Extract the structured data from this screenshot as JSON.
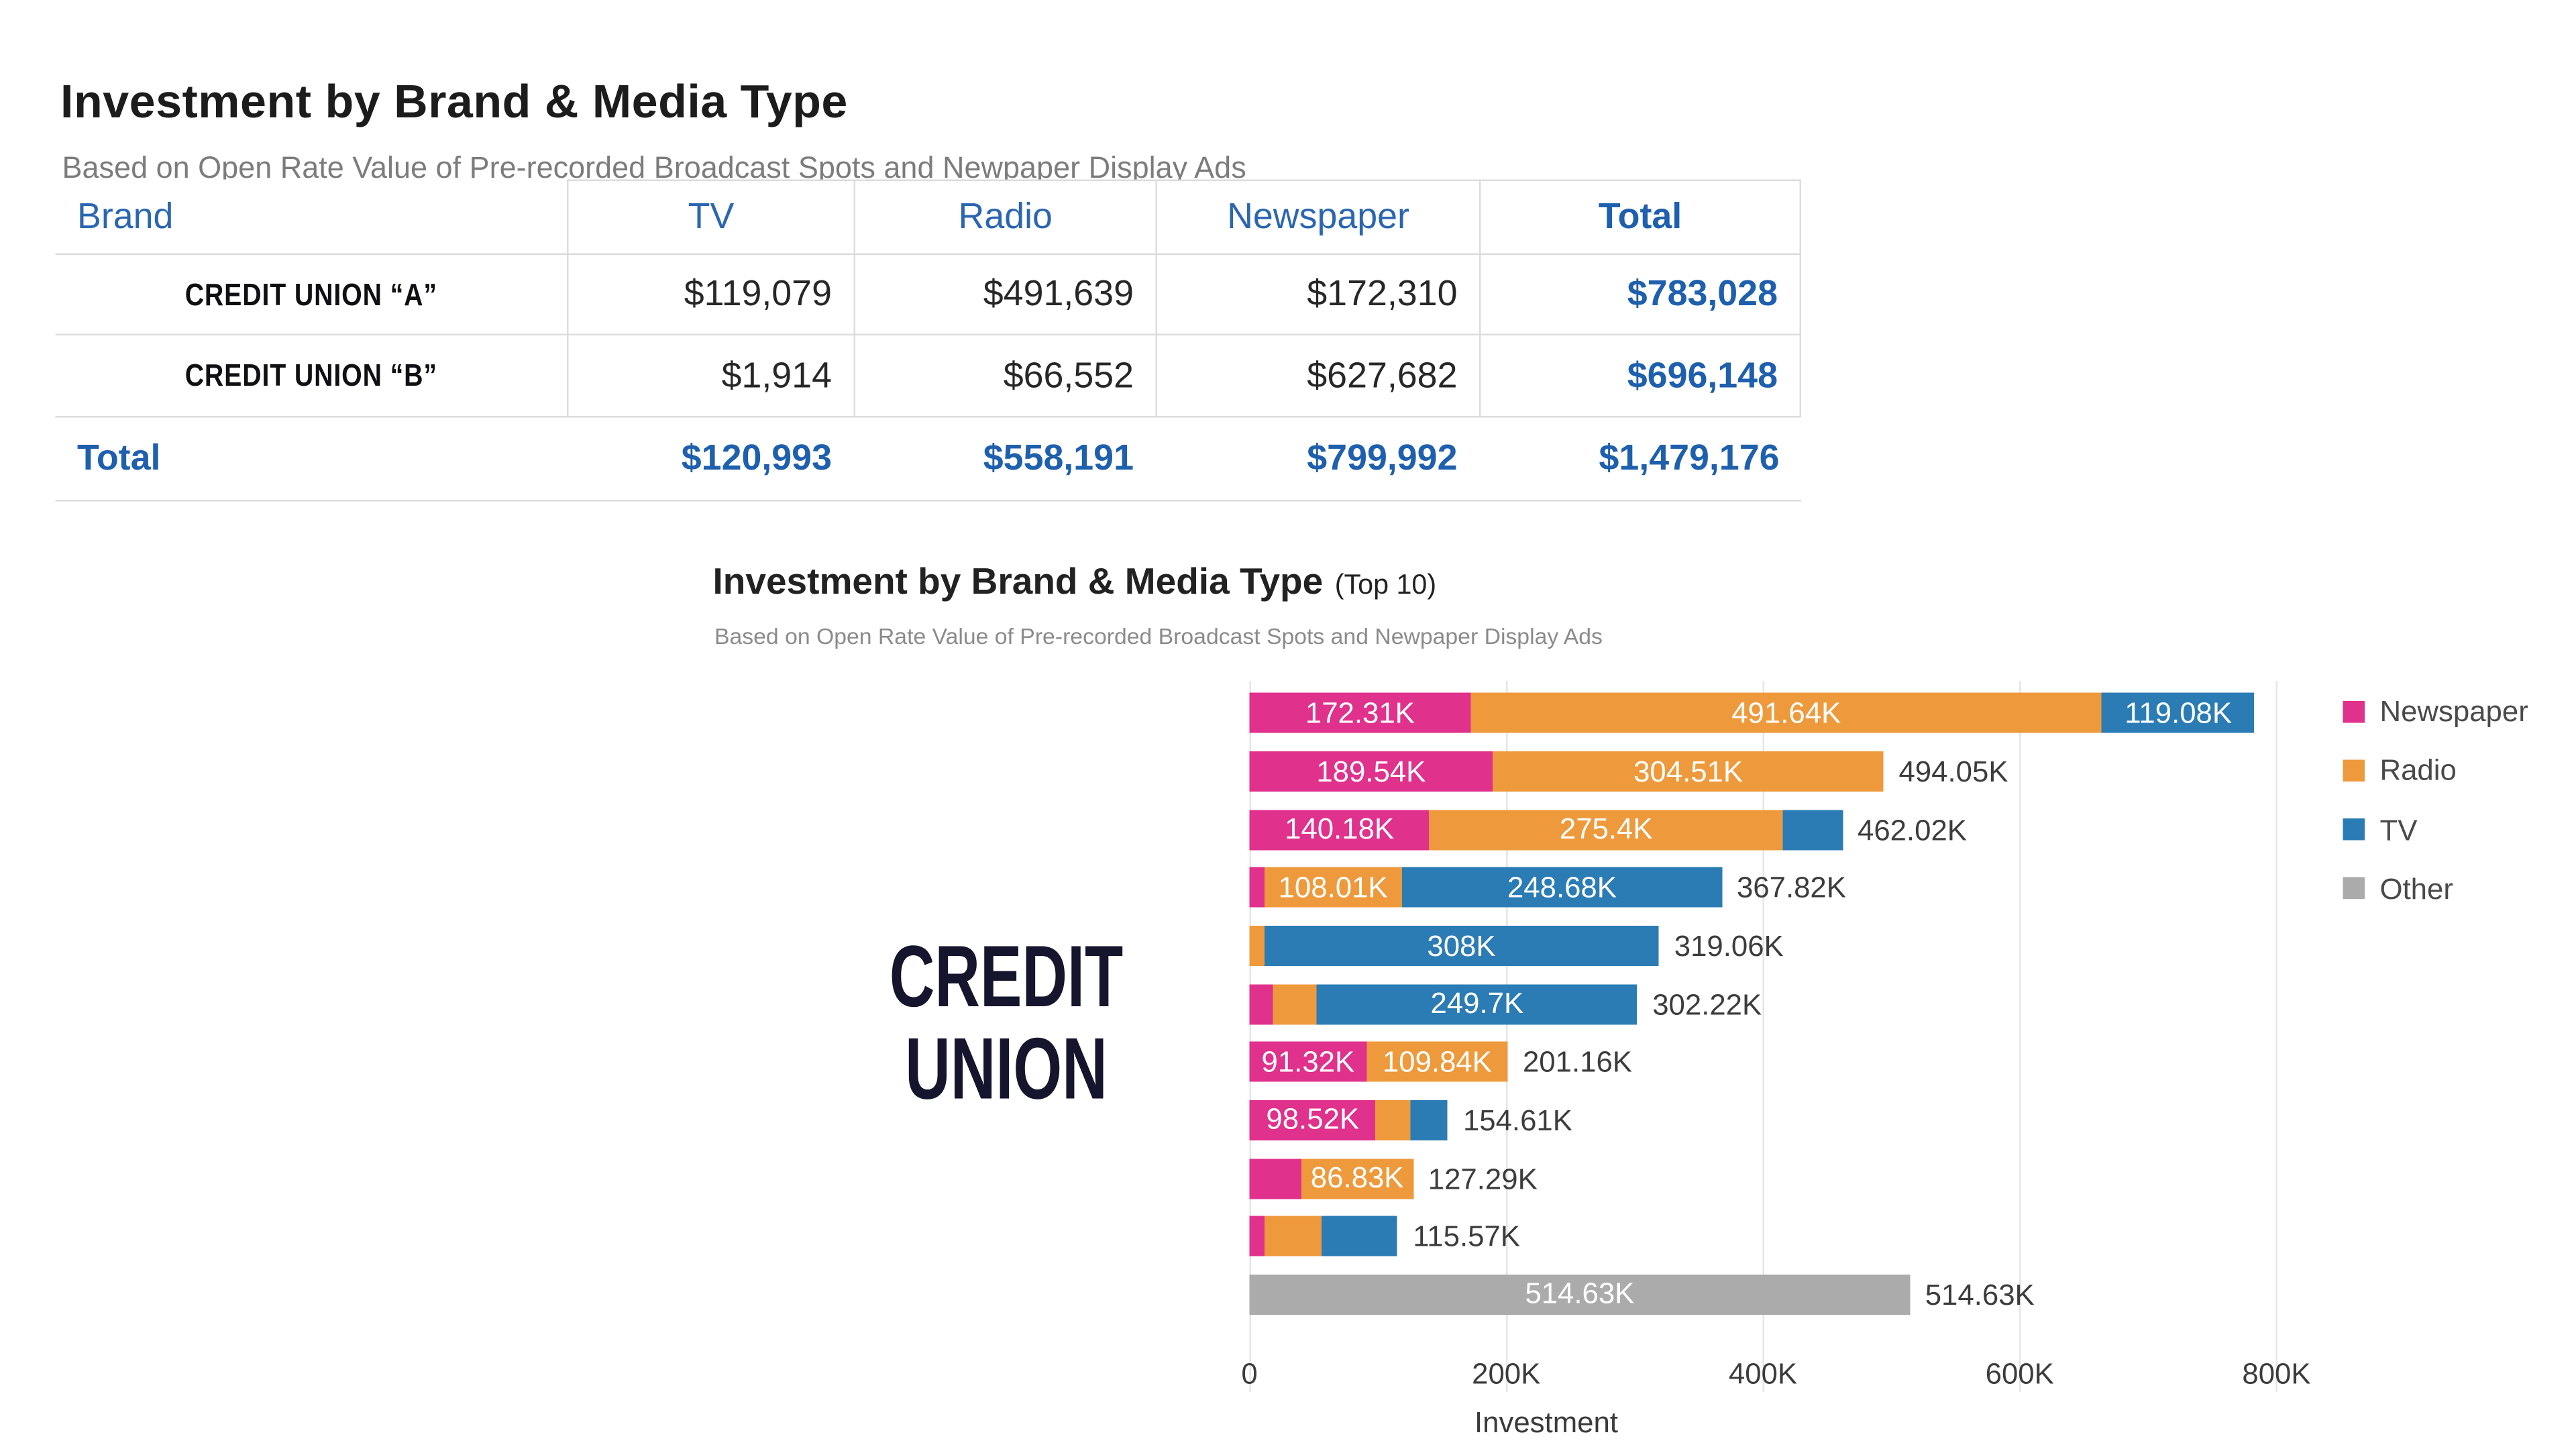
{
  "page": {
    "title": "Investment by Brand & Media Type",
    "subtitle": "Based on Open Rate Value of Pre-recorded Broadcast Spots and Newpaper Display Ads"
  },
  "table": {
    "columns": [
      "Brand",
      "TV",
      "Radio",
      "Newspaper",
      "Total"
    ],
    "rows": [
      {
        "brand": "CREDIT UNION “A”",
        "tv": "$119,079",
        "radio": "$491,639",
        "newspaper": "$172,310",
        "total": "$783,028"
      },
      {
        "brand": "CREDIT UNION “B”",
        "tv": "$1,914",
        "radio": "$66,552",
        "newspaper": "$627,682",
        "total": "$696,148"
      }
    ],
    "total_row": {
      "label": "Total",
      "tv": "$120,993",
      "radio": "$558,191",
      "newspaper": "$799,992",
      "total": "$1,479,176"
    }
  },
  "chart": {
    "title": "Investment by Brand & Media Type",
    "title_suffix": "(Top 10)",
    "subtitle": "Based on Open Rate Value of Pre-recorded Broadcast Spots and Newpaper Display Ads",
    "overlay_lines": [
      "CREDIT",
      "UNION"
    ]
  },
  "chart_data": {
    "type": "bar",
    "orientation": "horizontal",
    "stacked": true,
    "title": "Investment by Brand & Media Type (Top 10)",
    "subtitle": "Based on Open Rate Value of Pre-recorded Broadcast Spots and Newpaper Display Ads",
    "xlabel": "Investment",
    "ylabel": "",
    "xlim": [
      0,
      880000
    ],
    "grid": true,
    "legend_position": "right",
    "x_ticks": [
      {
        "label": "0",
        "value": 0
      },
      {
        "label": "200K",
        "value": 200000
      },
      {
        "label": "400K",
        "value": 400000
      },
      {
        "label": "600K",
        "value": 600000
      },
      {
        "label": "800K",
        "value": 800000
      }
    ],
    "legend": [
      {
        "label": "Newspaper",
        "color": "#E0318C"
      },
      {
        "label": "Radio",
        "color": "#EE9A3C"
      },
      {
        "label": "TV",
        "color": "#2B7CB5"
      },
      {
        "label": "Other",
        "color": "#ABABAB"
      }
    ],
    "rows": [
      {
        "segments": [
          {
            "series": "Newspaper",
            "value": 172310,
            "label": "172.31K"
          },
          {
            "series": "Radio",
            "value": 491640,
            "label": "491.64K"
          },
          {
            "series": "TV",
            "value": 119080,
            "label": "119.08K"
          }
        ],
        "total_value": 783030,
        "total_label": null
      },
      {
        "segments": [
          {
            "series": "Newspaper",
            "value": 189540,
            "label": "189.54K"
          },
          {
            "series": "Radio",
            "value": 304510,
            "label": "304.51K"
          }
        ],
        "total_value": 494050,
        "total_label": "494.05K"
      },
      {
        "segments": [
          {
            "series": "Newspaper",
            "value": 140180,
            "label": "140.18K"
          },
          {
            "series": "Radio",
            "value": 275400,
            "label": "275.4K"
          },
          {
            "series": "TV",
            "value": 46440,
            "label": null
          }
        ],
        "total_value": 462020,
        "total_label": "462.02K"
      },
      {
        "segments": [
          {
            "series": "Newspaper",
            "value": 11130,
            "label": null
          },
          {
            "series": "Radio",
            "value": 108010,
            "label": "108.01K"
          },
          {
            "series": "TV",
            "value": 248680,
            "label": "248.68K"
          }
        ],
        "total_value": 367820,
        "total_label": "367.82K"
      },
      {
        "segments": [
          {
            "series": "Radio",
            "value": 11060,
            "label": null
          },
          {
            "series": "TV",
            "value": 308000,
            "label": "308K"
          }
        ],
        "total_value": 319060,
        "total_label": "319.06K"
      },
      {
        "segments": [
          {
            "series": "Newspaper",
            "value": 18520,
            "label": null
          },
          {
            "series": "Radio",
            "value": 34000,
            "label": null
          },
          {
            "series": "TV",
            "value": 249700,
            "label": "249.7K"
          }
        ],
        "total_value": 302220,
        "total_label": "302.22K"
      },
      {
        "segments": [
          {
            "series": "Newspaper",
            "value": 91320,
            "label": "91.32K"
          },
          {
            "series": "Radio",
            "value": 109840,
            "label": "109.84K"
          }
        ],
        "total_value": 201160,
        "total_label": "201.16K"
      },
      {
        "segments": [
          {
            "series": "Newspaper",
            "value": 98520,
            "label": "98.52K"
          },
          {
            "series": "Radio",
            "value": 27500,
            "label": null
          },
          {
            "series": "TV",
            "value": 28590,
            "label": null
          }
        ],
        "total_value": 154610,
        "total_label": "154.61K"
      },
      {
        "segments": [
          {
            "series": "Newspaper",
            "value": 40460,
            "label": null
          },
          {
            "series": "Radio",
            "value": 86830,
            "label": "86.83K"
          }
        ],
        "total_value": 127290,
        "total_label": "127.29K"
      },
      {
        "segments": [
          {
            "series": "Newspaper",
            "value": 11500,
            "label": null
          },
          {
            "series": "Radio",
            "value": 44500,
            "label": null
          },
          {
            "series": "TV",
            "value": 59570,
            "label": null
          }
        ],
        "total_value": 115570,
        "total_label": "115.57K"
      },
      {
        "segments": [
          {
            "series": "Other",
            "value": 514630,
            "label": "514.63K"
          }
        ],
        "total_value": 514630,
        "total_label": "514.63K"
      }
    ]
  }
}
